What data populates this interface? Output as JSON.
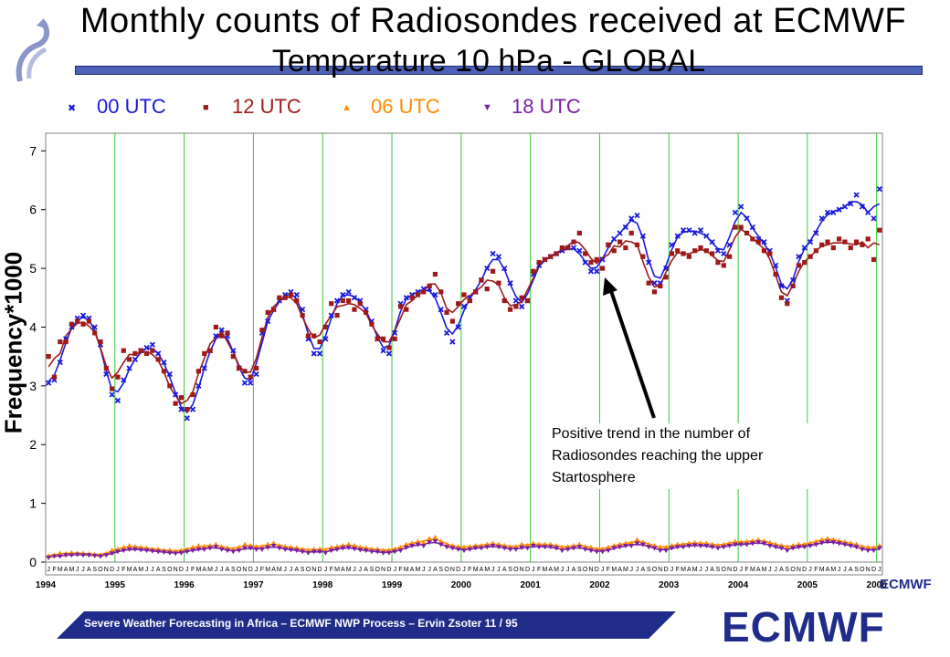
{
  "title_line1": "Monthly counts of Radiosondes received at ECMWF",
  "title_line2": "Temperature   10 hPa - GLOBAL",
  "legend": [
    {
      "name": "00 UTC",
      "color": "#1a1adc",
      "marker": "x"
    },
    {
      "name": "12 UTC",
      "color": "#9e1a1a",
      "marker": "square"
    },
    {
      "name": "06 UTC",
      "color": "#ff8a00",
      "marker": "triangle-up"
    },
    {
      "name": "18 UTC",
      "color": "#7a1fa0",
      "marker": "triangle-down"
    }
  ],
  "annotation": "Positive trend in the number of Radiosondes reaching the upper Startosphere",
  "footer": "Severe Weather Forecasting in Africa – ECMWF NWP Process – Ervin Zsoter    11 / 95",
  "logo_text": "ECMWF",
  "chart_data": {
    "type": "scatter",
    "ylabel": "Frequency*1000",
    "xlabel": "",
    "ylim": [
      0,
      7.3
    ],
    "yticks": [
      0,
      1,
      2,
      3,
      4,
      5,
      6,
      7
    ],
    "x_start": "1994-01",
    "x_end": "2006-06",
    "year_labels": [
      "1994",
      "1995",
      "1996",
      "1997",
      "1998",
      "1999",
      "2000",
      "2001",
      "2002",
      "2003",
      "2004",
      "2005",
      "2006"
    ],
    "month_letters": [
      "J",
      "F",
      "M",
      "A",
      "M",
      "J",
      "J",
      "A",
      "S",
      "O",
      "N",
      "D"
    ],
    "grid": "vertical lines at year boundaries",
    "series": [
      {
        "name": "00 UTC",
        "values": [
          3.05,
          3.1,
          3.4,
          3.8,
          4.0,
          4.15,
          4.2,
          4.15,
          4.0,
          3.7,
          3.2,
          2.85,
          2.75,
          3.1,
          3.3,
          3.45,
          3.6,
          3.65,
          3.7,
          3.55,
          3.4,
          3.2,
          2.85,
          2.6,
          2.45,
          2.6,
          3.0,
          3.3,
          3.6,
          3.85,
          3.95,
          3.85,
          3.6,
          3.3,
          3.05,
          3.05,
          3.2,
          3.9,
          4.1,
          4.3,
          4.45,
          4.55,
          4.6,
          4.55,
          4.3,
          3.8,
          3.55,
          3.55,
          3.8,
          4.2,
          4.45,
          4.55,
          4.6,
          4.5,
          4.45,
          4.3,
          4.1,
          3.8,
          3.6,
          3.55,
          3.9,
          4.4,
          4.5,
          4.55,
          4.6,
          4.65,
          4.65,
          4.55,
          4.3,
          3.9,
          3.75,
          4.0,
          4.35,
          4.5,
          4.6,
          4.8,
          5.0,
          5.25,
          5.2,
          5.0,
          4.75,
          4.45,
          4.35,
          4.45,
          4.9,
          5.05,
          5.15,
          5.2,
          5.25,
          5.3,
          5.35,
          5.35,
          5.3,
          5.1,
          4.95,
          4.95,
          5.15,
          5.4,
          5.5,
          5.6,
          5.7,
          5.85,
          5.9,
          5.55,
          5.1,
          4.75,
          4.75,
          5.0,
          5.4,
          5.55,
          5.65,
          5.65,
          5.6,
          5.65,
          5.55,
          5.45,
          5.3,
          5.25,
          5.4,
          5.95,
          6.05,
          5.85,
          5.7,
          5.5,
          5.45,
          5.3,
          5.05,
          4.7,
          4.45,
          4.8,
          5.2,
          5.35,
          5.45,
          5.6,
          5.85,
          5.95,
          5.95,
          6.0,
          6.05,
          6.1,
          6.25,
          6.05,
          5.95,
          5.85,
          6.35
        ]
      },
      {
        "name": "12 UTC",
        "values": [
          3.5,
          3.15,
          3.75,
          3.75,
          4.05,
          4.1,
          4.05,
          4.1,
          3.9,
          3.75,
          3.3,
          2.95,
          3.15,
          3.6,
          3.45,
          3.55,
          3.6,
          3.55,
          3.6,
          3.45,
          3.25,
          3.0,
          2.7,
          2.8,
          2.6,
          2.85,
          3.25,
          3.55,
          3.6,
          4.0,
          3.85,
          3.9,
          3.5,
          3.3,
          3.25,
          3.15,
          3.3,
          3.95,
          4.25,
          4.3,
          4.5,
          4.5,
          4.55,
          4.45,
          4.2,
          3.85,
          3.85,
          3.75,
          4.0,
          4.4,
          4.2,
          4.45,
          4.45,
          4.3,
          4.4,
          4.25,
          4.05,
          3.8,
          3.8,
          3.65,
          3.8,
          4.35,
          4.3,
          4.5,
          4.55,
          4.6,
          4.7,
          4.9,
          4.6,
          4.25,
          4.1,
          4.4,
          4.55,
          4.45,
          4.6,
          4.8,
          4.65,
          4.95,
          4.75,
          4.45,
          4.3,
          4.35,
          4.5,
          4.45,
          4.95,
          5.1,
          5.15,
          5.2,
          5.25,
          5.35,
          5.35,
          5.45,
          5.6,
          5.25,
          5.1,
          5.15,
          5.0,
          5.4,
          5.3,
          5.45,
          5.35,
          5.6,
          5.4,
          5.2,
          4.75,
          4.6,
          4.7,
          4.85,
          5.25,
          5.3,
          5.25,
          5.2,
          5.3,
          5.35,
          5.3,
          5.25,
          5.1,
          5.05,
          5.2,
          5.7,
          5.7,
          5.6,
          5.5,
          5.45,
          5.3,
          5.25,
          4.9,
          4.5,
          4.4,
          4.7,
          5.05,
          5.1,
          5.2,
          5.3,
          5.4,
          5.45,
          5.35,
          5.5,
          5.45,
          5.35,
          5.45,
          5.4,
          5.5,
          5.15,
          5.65
        ]
      },
      {
        "name": "06 UTC",
        "values": [
          0.1,
          0.12,
          0.15,
          0.14,
          0.16,
          0.15,
          0.15,
          0.14,
          0.13,
          0.12,
          0.14,
          0.2,
          0.22,
          0.25,
          0.28,
          0.26,
          0.25,
          0.24,
          0.22,
          0.22,
          0.2,
          0.2,
          0.18,
          0.2,
          0.22,
          0.25,
          0.28,
          0.26,
          0.28,
          0.3,
          0.26,
          0.24,
          0.22,
          0.25,
          0.3,
          0.28,
          0.26,
          0.26,
          0.3,
          0.32,
          0.28,
          0.26,
          0.25,
          0.24,
          0.22,
          0.2,
          0.22,
          0.22,
          0.2,
          0.25,
          0.26,
          0.28,
          0.3,
          0.28,
          0.25,
          0.24,
          0.22,
          0.22,
          0.2,
          0.2,
          0.22,
          0.25,
          0.3,
          0.32,
          0.35,
          0.33,
          0.4,
          0.42,
          0.35,
          0.3,
          0.28,
          0.26,
          0.25,
          0.26,
          0.28,
          0.28,
          0.3,
          0.32,
          0.3,
          0.28,
          0.26,
          0.26,
          0.3,
          0.28,
          0.32,
          0.3,
          0.3,
          0.3,
          0.28,
          0.25,
          0.26,
          0.28,
          0.3,
          0.26,
          0.25,
          0.22,
          0.22,
          0.25,
          0.28,
          0.3,
          0.32,
          0.32,
          0.38,
          0.34,
          0.3,
          0.28,
          0.25,
          0.25,
          0.28,
          0.3,
          0.3,
          0.32,
          0.33,
          0.32,
          0.32,
          0.3,
          0.28,
          0.3,
          0.32,
          0.35,
          0.34,
          0.35,
          0.36,
          0.38,
          0.36,
          0.33,
          0.3,
          0.28,
          0.25,
          0.28,
          0.3,
          0.3,
          0.32,
          0.35,
          0.38,
          0.4,
          0.38,
          0.36,
          0.34,
          0.32,
          0.3,
          0.26,
          0.25,
          0.24,
          0.28
        ]
      },
      {
        "name": "18 UTC",
        "values": [
          0.08,
          0.1,
          0.1,
          0.12,
          0.12,
          0.13,
          0.12,
          0.12,
          0.11,
          0.1,
          0.12,
          0.15,
          0.18,
          0.2,
          0.22,
          0.22,
          0.21,
          0.2,
          0.19,
          0.18,
          0.17,
          0.16,
          0.15,
          0.16,
          0.18,
          0.2,
          0.22,
          0.22,
          0.24,
          0.26,
          0.22,
          0.2,
          0.18,
          0.2,
          0.24,
          0.24,
          0.22,
          0.22,
          0.25,
          0.28,
          0.24,
          0.22,
          0.21,
          0.2,
          0.18,
          0.16,
          0.18,
          0.18,
          0.16,
          0.2,
          0.22,
          0.24,
          0.25,
          0.23,
          0.21,
          0.2,
          0.18,
          0.18,
          0.16,
          0.16,
          0.18,
          0.2,
          0.25,
          0.28,
          0.3,
          0.28,
          0.34,
          0.36,
          0.3,
          0.26,
          0.24,
          0.22,
          0.2,
          0.22,
          0.24,
          0.24,
          0.26,
          0.28,
          0.26,
          0.24,
          0.22,
          0.22,
          0.25,
          0.24,
          0.28,
          0.26,
          0.26,
          0.26,
          0.24,
          0.2,
          0.22,
          0.24,
          0.26,
          0.22,
          0.2,
          0.18,
          0.18,
          0.2,
          0.24,
          0.26,
          0.28,
          0.28,
          0.32,
          0.3,
          0.26,
          0.24,
          0.2,
          0.2,
          0.24,
          0.26,
          0.26,
          0.28,
          0.29,
          0.28,
          0.28,
          0.26,
          0.24,
          0.26,
          0.28,
          0.3,
          0.3,
          0.3,
          0.32,
          0.34,
          0.32,
          0.28,
          0.26,
          0.24,
          0.2,
          0.24,
          0.26,
          0.26,
          0.28,
          0.3,
          0.33,
          0.35,
          0.34,
          0.32,
          0.3,
          0.28,
          0.26,
          0.22,
          0.2,
          0.2,
          0.24
        ]
      }
    ]
  }
}
